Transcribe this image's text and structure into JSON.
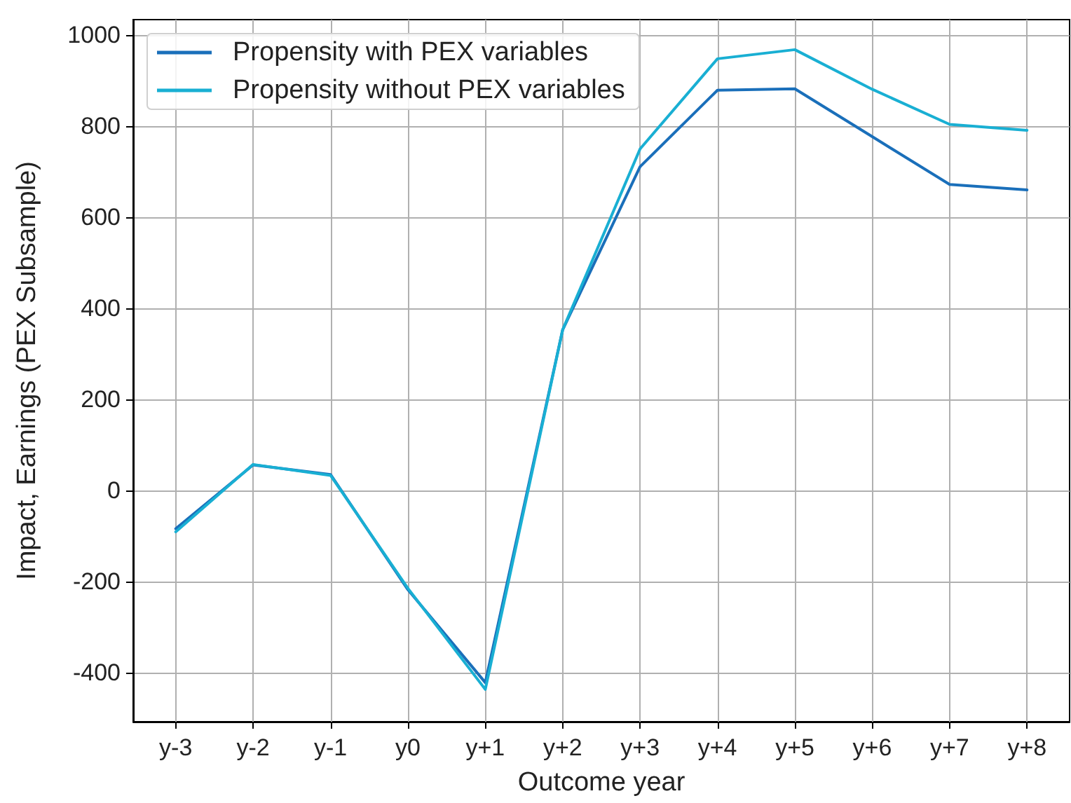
{
  "chart_data": {
    "type": "line",
    "xlabel": "Outcome year",
    "ylabel": "Impact, Earnings (PEX Subsample)",
    "categories": [
      "y-3",
      "y-2",
      "y-1",
      "y0",
      "y+1",
      "y+2",
      "y+3",
      "y+4",
      "y+5",
      "y+6",
      "y+7",
      "y+8"
    ],
    "series": [
      {
        "name": "Propensity with PEX variables",
        "color": "#1a6fba",
        "values": [
          -84,
          56,
          35,
          -218,
          -422,
          353,
          711,
          879,
          882,
          777,
          672,
          660
        ]
      },
      {
        "name": "Propensity without PEX variables",
        "color": "#19afd3",
        "values": [
          -91,
          57,
          33,
          -215,
          -437,
          353,
          750,
          948,
          968,
          881,
          804,
          791
        ]
      }
    ],
    "ylim": [
      -508,
      1034
    ],
    "yticks": [
      -400,
      -200,
      0,
      200,
      400,
      600,
      800,
      1000
    ],
    "grid": true,
    "legend": "top left"
  }
}
